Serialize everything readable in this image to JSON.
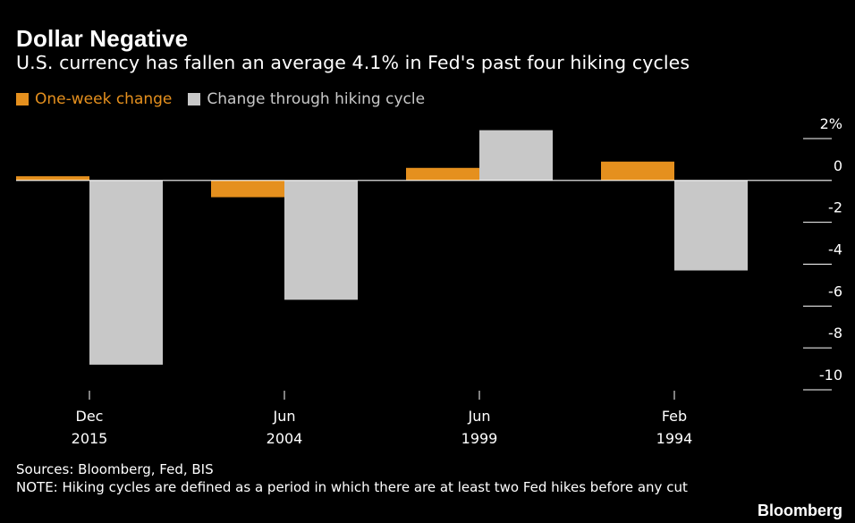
{
  "header": {
    "title": "Dollar Negative",
    "subtitle": "U.S. currency has fallen an average 4.1% in Fed's past four hiking cycles"
  },
  "legend": {
    "items": [
      {
        "label": "One-week change",
        "color": "#e5901e"
      },
      {
        "label": "Change through hiking cycle",
        "color": "#c8c8c8"
      }
    ]
  },
  "footer": {
    "sources": "Sources: Bloomberg, Fed, BIS",
    "note": "NOTE: Hiking cycles are defined as a period in which there are at least two Fed hikes before any cut",
    "brand": "Bloomberg"
  },
  "chart_data": {
    "type": "bar",
    "title": "Dollar Negative",
    "subtitle": "U.S. currency has fallen an average 4.1% in Fed's past four hiking cycles",
    "categories": [
      {
        "month": "Dec",
        "year": "2015"
      },
      {
        "month": "Jun",
        "year": "2004"
      },
      {
        "month": "Jun",
        "year": "1999"
      },
      {
        "month": "Feb",
        "year": "1994"
      }
    ],
    "series": [
      {
        "name": "One-week change",
        "color": "#e5901e",
        "values": [
          0.2,
          -0.8,
          0.6,
          0.9
        ]
      },
      {
        "name": "Change through hiking cycle",
        "color": "#c8c8c8",
        "values": [
          -8.8,
          -5.7,
          2.4,
          -4.3
        ]
      }
    ],
    "ylim": [
      -10,
      2
    ],
    "y_ticks": [
      2,
      0,
      -2,
      -4,
      -6,
      -8,
      -10
    ],
    "y_tick_labels": [
      "2%",
      "0",
      "-2",
      "-4",
      "-6",
      "-8",
      "-10"
    ],
    "y_axis_position": "right",
    "zero_line_color": "#ffffff",
    "grid": false,
    "legend_position": "top-left"
  }
}
